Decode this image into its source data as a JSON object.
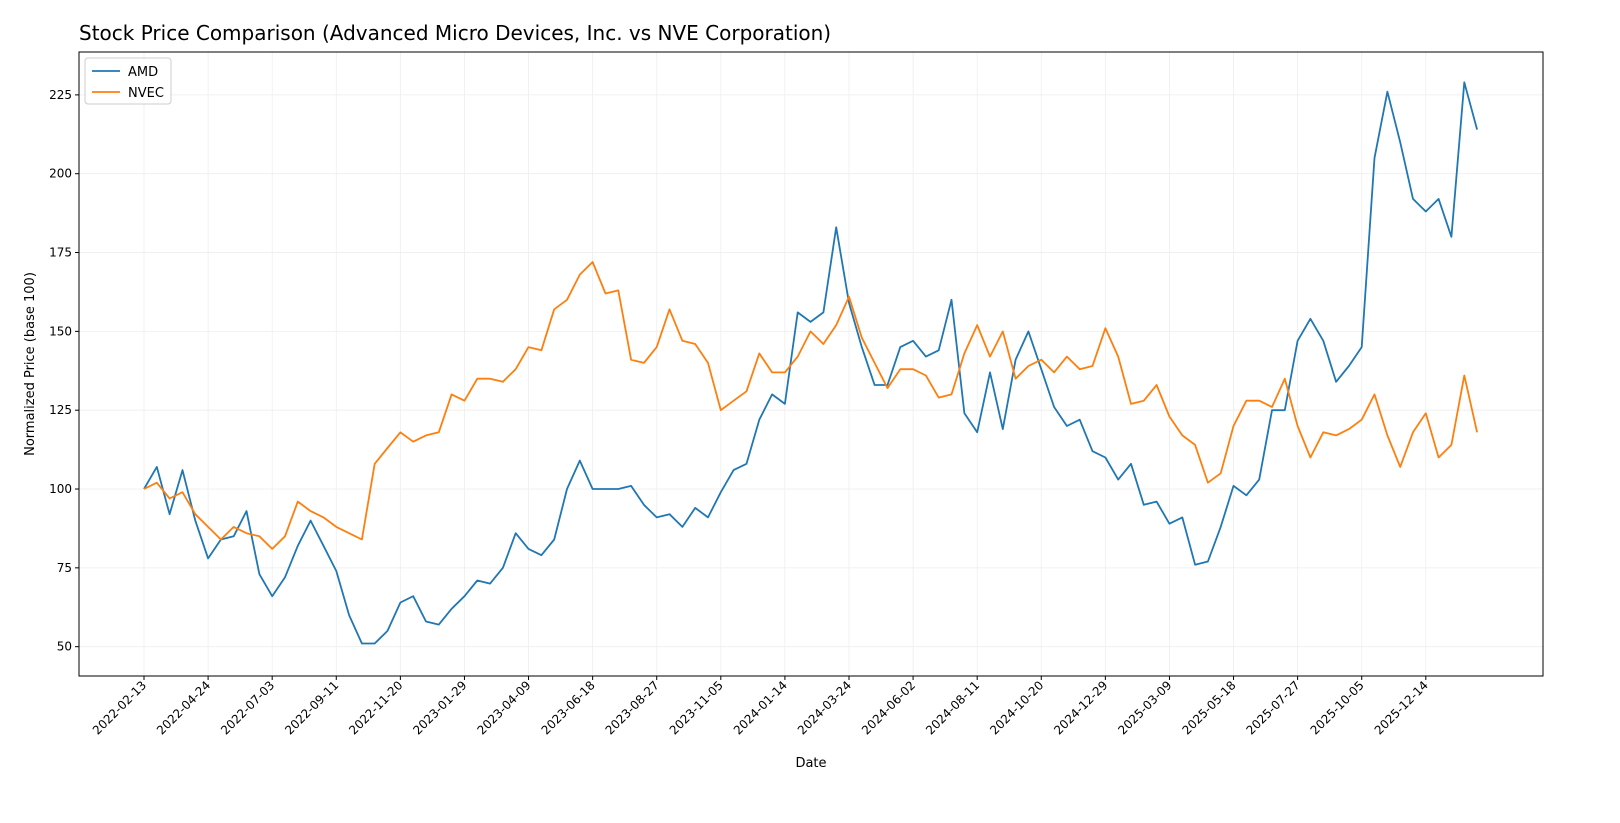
{
  "chart_data": {
    "type": "line",
    "title": "Stock Price Comparison (Advanced Micro Devices, Inc. vs NVE Corporation)",
    "xlabel": "Date",
    "ylabel": "Normalized Price (base 100)",
    "ylim": [
      40.7,
      238.6
    ],
    "xlim": [
      "2021-12-04",
      "2026-04-21"
    ],
    "grid": true,
    "legend_position": "top-left",
    "x_ticks": [
      "2022-02-13",
      "2022-04-24",
      "2022-07-03",
      "2022-09-11",
      "2022-11-20",
      "2023-01-29",
      "2023-04-09",
      "2023-06-18",
      "2023-08-27",
      "2023-11-05",
      "2024-01-14",
      "2024-03-24",
      "2024-06-02",
      "2024-08-11",
      "2024-10-20",
      "2024-12-29",
      "2025-03-09",
      "2025-05-18",
      "2025-07-27",
      "2025-10-05",
      "2025-12-14"
    ],
    "y_ticks": [
      50,
      75,
      100,
      125,
      150,
      175,
      200,
      225
    ],
    "x": [
      "2022-02-13",
      "2022-02-27",
      "2022-03-13",
      "2022-03-27",
      "2022-04-10",
      "2022-04-24",
      "2022-05-08",
      "2022-05-22",
      "2022-06-05",
      "2022-06-19",
      "2022-07-03",
      "2022-07-17",
      "2022-07-31",
      "2022-08-14",
      "2022-08-28",
      "2022-09-11",
      "2022-09-25",
      "2022-10-09",
      "2022-10-23",
      "2022-11-06",
      "2022-11-20",
      "2022-12-04",
      "2022-12-18",
      "2023-01-01",
      "2023-01-15",
      "2023-01-29",
      "2023-02-12",
      "2023-02-26",
      "2023-03-12",
      "2023-03-26",
      "2023-04-09",
      "2023-04-23",
      "2023-05-07",
      "2023-05-21",
      "2023-06-04",
      "2023-06-18",
      "2023-07-02",
      "2023-07-16",
      "2023-07-30",
      "2023-08-13",
      "2023-08-27",
      "2023-09-10",
      "2023-09-24",
      "2023-10-08",
      "2023-10-22",
      "2023-11-05",
      "2023-11-19",
      "2023-12-03",
      "2023-12-17",
      "2023-12-31",
      "2024-01-14",
      "2024-01-28",
      "2024-02-11",
      "2024-02-25",
      "2024-03-10",
      "2024-03-24",
      "2024-04-07",
      "2024-04-21",
      "2024-05-05",
      "2024-05-19",
      "2024-06-02",
      "2024-06-16",
      "2024-06-30",
      "2024-07-14",
      "2024-07-28",
      "2024-08-11",
      "2024-08-25",
      "2024-09-08",
      "2024-09-22",
      "2024-10-06",
      "2024-10-20",
      "2024-11-03",
      "2024-11-17",
      "2024-12-01",
      "2024-12-15",
      "2024-12-29",
      "2025-01-12",
      "2025-01-26",
      "2025-02-09",
      "2025-02-23",
      "2025-03-09",
      "2025-03-23",
      "2025-04-06",
      "2025-04-20",
      "2025-05-04",
      "2025-05-18",
      "2025-06-01",
      "2025-06-15",
      "2025-06-29",
      "2025-07-13",
      "2025-07-27",
      "2025-08-10",
      "2025-08-24",
      "2025-09-07",
      "2025-09-21",
      "2025-10-05",
      "2025-10-19",
      "2025-11-02",
      "2025-11-16",
      "2025-11-30",
      "2025-12-14",
      "2025-12-28",
      "2026-01-11",
      "2026-01-25",
      "2026-02-08"
    ],
    "series": [
      {
        "name": "AMD",
        "color": "#1f77b4",
        "values": [
          100,
          107,
          92,
          106,
          90,
          78,
          84,
          85,
          93,
          73,
          66,
          72,
          82,
          90,
          82,
          74,
          60,
          51,
          51,
          55,
          64,
          66,
          58,
          57,
          62,
          66,
          71,
          70,
          75,
          86,
          81,
          79,
          84,
          100,
          109,
          100,
          100,
          100,
          101,
          95,
          91,
          92,
          88,
          94,
          91,
          99,
          106,
          108,
          122,
          130,
          127,
          156,
          153,
          156,
          183,
          159,
          145,
          133,
          133,
          145,
          147,
          142,
          144,
          160,
          124,
          118,
          137,
          119,
          141,
          150,
          138,
          126,
          120,
          122,
          112,
          110,
          103,
          108,
          95,
          96,
          89,
          91,
          76,
          77,
          88,
          101,
          98,
          103,
          125,
          125,
          147,
          154,
          147,
          134,
          139,
          145,
          205,
          226,
          210,
          192,
          188,
          192,
          180,
          229,
          214
        ]
      },
      {
        "name": "NVEC",
        "color": "#ff7f0e",
        "values": [
          100,
          102,
          97,
          99,
          92,
          88,
          84,
          88,
          86,
          85,
          81,
          85,
          96,
          93,
          91,
          88,
          86,
          84,
          108,
          113,
          118,
          115,
          117,
          118,
          130,
          128,
          135,
          135,
          134,
          138,
          145,
          144,
          157,
          160,
          168,
          172,
          162,
          163,
          141,
          140,
          145,
          157,
          147,
          146,
          140,
          125,
          128,
          131,
          143,
          137,
          137,
          142,
          150,
          146,
          152,
          161,
          148,
          140,
          132,
          138,
          138,
          136,
          129,
          130,
          143,
          152,
          142,
          150,
          135,
          139,
          141,
          137,
          142,
          138,
          139,
          151,
          142,
          127,
          128,
          133,
          123,
          117,
          114,
          102,
          105,
          120,
          128,
          128,
          126,
          135,
          120,
          110,
          118,
          117,
          119,
          122,
          130,
          117,
          107,
          118,
          124,
          110,
          114,
          136,
          118
        ]
      }
    ]
  }
}
